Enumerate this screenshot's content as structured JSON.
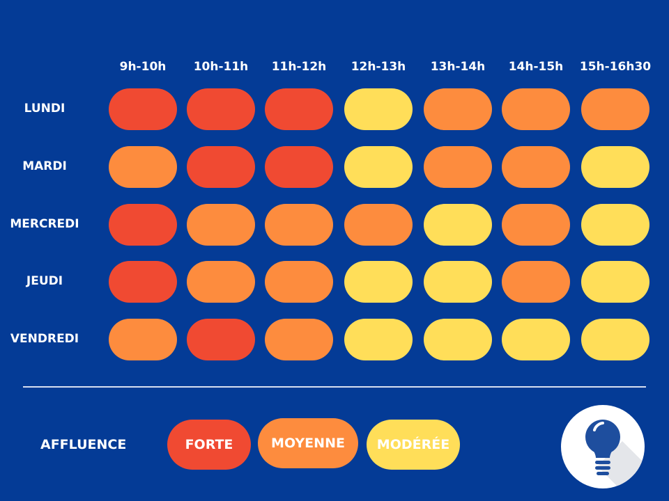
{
  "chart_data": {
    "type": "heatmap",
    "columns": [
      "9h-10h",
      "10h-11h",
      "11h-12h",
      "12h-13h",
      "13h-14h",
      "14h-15h",
      "15h-16h30"
    ],
    "rows": [
      "LUNDI",
      "MARDI",
      "MERCREDI",
      "JEUDI",
      "VENDREDI"
    ],
    "values": [
      [
        "FORTE",
        "FORTE",
        "FORTE",
        "MODÉRÉE",
        "MOYENNE",
        "MOYENNE",
        "MOYENNE"
      ],
      [
        "MOYENNE",
        "FORTE",
        "FORTE",
        "MODÉRÉE",
        "MOYENNE",
        "MOYENNE",
        "MODÉRÉE"
      ],
      [
        "FORTE",
        "MOYENNE",
        "MOYENNE",
        "MOYENNE",
        "MODÉRÉE",
        "MOYENNE",
        "MODÉRÉE"
      ],
      [
        "FORTE",
        "MOYENNE",
        "MOYENNE",
        "MODÉRÉE",
        "MODÉRÉE",
        "MOYENNE",
        "MODÉRÉE"
      ],
      [
        "MOYENNE",
        "FORTE",
        "MOYENNE",
        "MODÉRÉE",
        "MODÉRÉE",
        "MODÉRÉE",
        "MODÉRÉE"
      ]
    ],
    "legend": {
      "title": "AFFLUENCE",
      "levels": [
        {
          "label": "FORTE",
          "color": "#F04A32"
        },
        {
          "label": "MOYENNE",
          "color": "#FD8C3E"
        },
        {
          "label": "MODÉRÉE",
          "color": "#FFDE59"
        }
      ]
    }
  },
  "colors": {
    "background": "#043B96",
    "FORTE": "#F04A32",
    "MOYENNE": "#FD8C3E",
    "MODÉRÉE": "#FFDE59"
  },
  "icon": "lightbulb-icon"
}
